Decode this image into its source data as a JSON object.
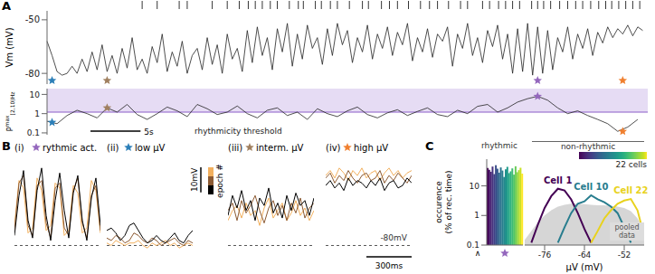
{
  "chart_data": [
    {
      "panel": "A",
      "type": "line",
      "ylabel": "Vm (mV)",
      "xlim": [
        0,
        60
      ],
      "ylim": [
        -86,
        -45
      ],
      "yticks": [
        -80,
        -50
      ],
      "tick_labels": "y",
      "color": "#222222",
      "x": [
        0,
        0.5,
        1,
        1.5,
        2,
        2.5,
        3,
        3.5,
        4,
        4.5,
        5,
        5.5,
        6,
        6.5,
        7,
        7.5,
        8,
        8.5,
        9,
        9.5,
        10,
        10.5,
        11,
        11.5,
        12,
        12.5,
        13,
        13.5,
        14,
        14.5,
        15,
        15.5,
        16,
        16.5,
        17,
        17.5,
        18,
        18.5,
        19,
        19.5,
        20,
        20.5,
        21,
        21.5,
        22,
        22.5,
        23,
        23.5,
        24,
        24.5,
        25,
        25.5,
        26,
        26.5,
        27,
        27.5,
        28,
        28.5,
        29,
        29.5,
        30,
        30.5,
        31,
        31.5,
        32,
        32.5,
        33,
        33.5,
        34,
        34.5,
        35,
        35.5,
        36,
        36.5,
        37,
        37.5,
        38,
        38.5,
        39,
        39.5,
        40,
        40.5,
        41,
        41.5,
        42,
        42.5,
        43,
        43.5,
        44,
        44.5,
        45,
        45.5,
        46,
        46.5,
        47,
        47.5,
        48,
        48.5,
        49,
        49.5,
        50,
        50.5,
        51,
        51.5,
        52,
        52.5,
        53,
        53.5,
        54,
        54.5,
        55,
        55.5,
        56,
        56.5,
        57,
        57.5,
        58,
        58.5,
        59,
        59.5
      ],
      "values": [
        -62,
        -70,
        -79,
        -81,
        -80,
        -76,
        -80,
        -72,
        -79,
        -68,
        -78,
        -64,
        -79,
        -70,
        -80,
        -66,
        -77,
        -60,
        -78,
        -72,
        -80,
        -65,
        -74,
        -58,
        -79,
        -68,
        -76,
        -62,
        -80,
        -70,
        -66,
        -78,
        -60,
        -75,
        -64,
        -80,
        -58,
        -72,
        -66,
        -79,
        -56,
        -74,
        -54,
        -70,
        -60,
        -78,
        -55,
        -68,
        -52,
        -76,
        -58,
        -72,
        -53,
        -66,
        -60,
        -75,
        -55,
        -70,
        -52,
        -64,
        -56,
        -74,
        -60,
        -68,
        -53,
        -72,
        -58,
        -66,
        -54,
        -70,
        -57,
        -64,
        -52,
        -73,
        -60,
        -68,
        -55,
        -71,
        -58,
        -62,
        -54,
        -76,
        -58,
        -66,
        -52,
        -70,
        -60,
        -74,
        -56,
        -65,
        -53,
        -72,
        -58,
        -80,
        -55,
        -79,
        -52,
        -81,
        -54,
        -80,
        -56,
        -78,
        -60,
        -68,
        -54,
        -72,
        -58,
        -66,
        -55,
        -70,
        -57,
        -63,
        -54,
        -60,
        -55,
        -58,
        -53,
        -59,
        -54,
        -56
      ],
      "spike_times": [
        9.5,
        11,
        13.2,
        14,
        16.5,
        18,
        19.2,
        20.1,
        20.8,
        21.5,
        22.3,
        23,
        24.2,
        25.1,
        25.6,
        26.8,
        27.4,
        28.3,
        29,
        30.2,
        31.5,
        32.1,
        33.4,
        34.2,
        35,
        36.1,
        37.3,
        38.2,
        39,
        40.1,
        41.3,
        42,
        43.5,
        44.2,
        45.1,
        45.8,
        46.5,
        47.2,
        48.4,
        49,
        49.6,
        50.3,
        51.2,
        52,
        52.8,
        53.5,
        54.3,
        55.1,
        55.8,
        56.4,
        57.1,
        57.8,
        58.5,
        59.2
      ],
      "scale_bar": {
        "value": 5,
        "label": "5s"
      }
    },
    {
      "type": "line",
      "ylabel": {
        "base": "P",
        "sup": "max",
        "sub": "[2,10)Hz"
      },
      "log": "y",
      "xlim": [
        0,
        60
      ],
      "ylim": [
        0.08,
        20
      ],
      "yticks": [
        0.1,
        1,
        10
      ],
      "tick_labels": "y",
      "color": "#222222",
      "x": [
        0,
        1,
        2,
        3,
        4,
        5,
        6,
        7,
        8,
        9,
        10,
        11,
        12,
        13,
        14,
        15,
        16,
        17,
        18,
        19,
        20,
        21,
        22,
        23,
        24,
        25,
        26,
        27,
        28,
        29,
        30,
        31,
        32,
        33,
        34,
        35,
        36,
        37,
        38,
        39,
        40,
        41,
        42,
        43,
        44,
        45,
        46,
        47,
        48,
        49,
        50,
        51,
        52,
        53,
        54,
        55,
        56,
        57,
        58,
        59
      ],
      "values": [
        0.4,
        0.3,
        0.8,
        1.5,
        1,
        0.6,
        2,
        1.2,
        3,
        0.9,
        0.5,
        1,
        2.2,
        1.4,
        0.7,
        3,
        1.8,
        0.9,
        1.2,
        2.5,
        1,
        0.6,
        1.5,
        2,
        0.8,
        1.2,
        0.5,
        1.8,
        1,
        0.7,
        1.4,
        2.2,
        0.9,
        0.6,
        1.1,
        1.6,
        0.8,
        1.3,
        2,
        0.9,
        0.7,
        1.5,
        1,
        2.4,
        3,
        1.2,
        2,
        4,
        6,
        8,
        5,
        2,
        1,
        1.4,
        0.8,
        0.5,
        0.3,
        0.12,
        0.2,
        0.5
      ],
      "threshold": {
        "value": 1.2,
        "label": "rhythmicity threshold",
        "color": "#8a5cc8"
      }
    },
    {
      "panel": "B",
      "type": "line",
      "tick_labels": false,
      "xlim": [
        0,
        570
      ],
      "ylim": [
        -82,
        -44
      ],
      "x": [
        0,
        30,
        60,
        90,
        120,
        150,
        180,
        210,
        240,
        270,
        300,
        330,
        360,
        390,
        420,
        450,
        480,
        510,
        540,
        570
      ],
      "reference_line": {
        "value": -80,
        "label": "-80mV"
      },
      "scale_bars": {
        "y": {
          "value": 10,
          "label": "10mV"
        },
        "x": {
          "value": 300,
          "label": "300ms"
        }
      },
      "epoch_legend": "epoch #",
      "subpanels": [
        {
          "label": "(i)",
          "title": "rythmic act.",
          "color": "#9467bd",
          "t": 49,
          "P": 8,
          "series": [
            {
              "color": "#000000",
              "values": [
                -76,
                -60,
                -50,
                -70,
                -77,
                -58,
                -49,
                -68,
                -78,
                -62,
                -51,
                -66,
                -77,
                -59,
                -52,
                -70,
                -78,
                -61,
                -53,
                -72
              ]
            },
            {
              "color": "#8c5a32",
              "values": [
                -74,
                -55,
                -52,
                -72,
                -76,
                -56,
                -54,
                -71,
                -77,
                -57,
                -55,
                -73,
                -76,
                -58,
                -53,
                -71,
                -77,
                -60,
                -56,
                -74
              ]
            },
            {
              "color": "#f2b05e",
              "values": [
                -72,
                -54,
                -57,
                -75,
                -73,
                -53,
                -58,
                -74,
                -72,
                -55,
                -57,
                -76,
                -74,
                -56,
                -59,
                -75,
                -73,
                -54,
                -58,
                -75
              ]
            }
          ]
        },
        {
          "label": "(ii)",
          "title": "low μV",
          "color": "#2c7fb8",
          "t": 0.5,
          "P": 0.35,
          "series": [
            {
              "color": "#000000",
              "values": [
                -74,
                -73,
                -75,
                -78,
                -76,
                -72,
                -71,
                -74,
                -77,
                -79,
                -78,
                -76,
                -78,
                -79,
                -77,
                -75,
                -78,
                -79,
                -76,
                -74
              ]
            },
            {
              "color": "#8c5a32",
              "values": [
                -77,
                -78,
                -76,
                -77,
                -79,
                -78,
                -75,
                -76,
                -78,
                -79,
                -77,
                -78,
                -80,
                -79,
                -78,
                -77,
                -79,
                -80,
                -78,
                -79
              ]
            },
            {
              "color": "#f2b05e",
              "values": [
                -79,
                -80,
                -78,
                -79,
                -80,
                -79,
                -79,
                -78,
                -80,
                -81,
                -79,
                -80,
                -79,
                -78,
                -80,
                -79,
                -81,
                -80,
                -79,
                -80
              ]
            }
          ]
        },
        {
          "label": "(iii)",
          "title": "interm. μV",
          "color": "#a08060",
          "t": 6,
          "P": 2,
          "series": [
            {
              "color": "#000000",
              "values": [
                -68,
                -60,
                -65,
                -58,
                -66,
                -62,
                -70,
                -61,
                -64,
                -57,
                -67,
                -63,
                -69,
                -60,
                -66,
                -59,
                -64,
                -62,
                -68,
                -61
              ]
            },
            {
              "color": "#8c5a32",
              "values": [
                -66,
                -63,
                -70,
                -62,
                -67,
                -64,
                -60,
                -66,
                -71,
                -65,
                -62,
                -68,
                -64,
                -70,
                -63,
                -67,
                -61,
                -69,
                -65,
                -63
              ]
            },
            {
              "color": "#f2b05e",
              "values": [
                -70,
                -66,
                -64,
                -69,
                -63,
                -68,
                -66,
                -72,
                -65,
                -61,
                -69,
                -66,
                -63,
                -70,
                -67,
                -62,
                -68,
                -65,
                -70,
                -66
              ]
            }
          ]
        },
        {
          "label": "(iv)",
          "title": "high μV",
          "color": "#f08030",
          "t": 57.5,
          "P": 0.12,
          "series": [
            {
              "color": "#000000",
              "values": [
                -56,
                -54,
                -57,
                -55,
                -58,
                -53,
                -56,
                -54,
                -55,
                -57,
                -54,
                -56,
                -53,
                -58,
                -55,
                -54,
                -57,
                -56,
                -53,
                -55
              ]
            },
            {
              "color": "#8c5a32",
              "values": [
                -53,
                -51,
                -55,
                -52,
                -54,
                -50,
                -53,
                -55,
                -52,
                -51,
                -54,
                -53,
                -50,
                -55,
                -52,
                -54,
                -51,
                -53,
                -55,
                -52
              ]
            },
            {
              "color": "#f2b05e",
              "values": [
                -52,
                -50,
                -53,
                -49,
                -51,
                -54,
                -50,
                -52,
                -49,
                -53,
                -51,
                -50,
                -54,
                -51,
                -49,
                -52,
                -50,
                -53,
                -51,
                -50
              ]
            }
          ]
        }
      ]
    },
    {
      "panel": "C",
      "type": "line",
      "ylabel": [
        "occurence",
        "(% of rec. time)"
      ],
      "xlabel": "μV (mV)",
      "log": "y",
      "xlim": [
        -82,
        -46
      ],
      "xticks": [
        -76,
        -64,
        -52
      ],
      "ylim": [
        0.1,
        80
      ],
      "yticks": [
        0.1,
        1,
        10
      ],
      "below_range_mark": "∧",
      "rhythmic_label": "rhythmic",
      "non_rhythmic_label": "non-rhythmic",
      "rhythmic_bars": {
        "type": "bar",
        "values": [
          40,
          35,
          30,
          45,
          25,
          50,
          38,
          28,
          42,
          33,
          20,
          36,
          44,
          27,
          31,
          39,
          24,
          46,
          29,
          34,
          41,
          26
        ],
        "colors": [
          "#440154",
          "#471365",
          "#482374",
          "#46327e",
          "#424086",
          "#3c4f8a",
          "#365c8d",
          "#31688e",
          "#2c738e",
          "#287d8e",
          "#25888e",
          "#21918c",
          "#1f9c89",
          "#22a785",
          "#2cb17e",
          "#3dbc74",
          "#52c569",
          "#6ccd5a",
          "#89d548",
          "#a8db34",
          "#c8e020",
          "#fde725"
        ]
      },
      "colorbar": {
        "label": "22 cells"
      },
      "pooled": {
        "name": "pooled data",
        "color": "#cccccc",
        "x": [
          -82,
          -80,
          -78,
          -76,
          -74,
          -72,
          -70,
          -68,
          -66,
          -64,
          -62,
          -60,
          -58,
          -56,
          -54,
          -52,
          -50,
          -48,
          -46
        ],
        "values": [
          0.15,
          0.3,
          0.6,
          1,
          1.5,
          2,
          2.3,
          2.5,
          2.5,
          2.4,
          2.3,
          2.2,
          2.2,
          2.1,
          2,
          1.8,
          1.4,
          0.8,
          0.3
        ]
      },
      "series": [
        {
          "name": "Cell 1",
          "color": "#440154",
          "x": [
            -80,
            -78,
            -76,
            -74,
            -72,
            -70,
            -68,
            -66,
            -64,
            -62
          ],
          "values": [
            0.12,
            0.5,
            1.8,
            4.5,
            8,
            7,
            3.5,
            1.2,
            0.35,
            0.12
          ]
        },
        {
          "name": "Cell 10",
          "color": "#287d8e",
          "x": [
            -72,
            -70,
            -68,
            -66,
            -64,
            -62,
            -60,
            -58,
            -56,
            -54,
            -52,
            -50
          ],
          "values": [
            0.12,
            0.4,
            1.2,
            2.5,
            3,
            4.8,
            3.5,
            2.8,
            2,
            1.2,
            0.4,
            0.12
          ]
        },
        {
          "name": "Cell 22",
          "color": "#e8d21d",
          "x": [
            -62,
            -60,
            -58,
            -56,
            -54,
            -52,
            -50,
            -48,
            -46
          ],
          "values": [
            0.12,
            0.3,
            0.8,
            1.5,
            2.5,
            3.2,
            3.6,
            1.5,
            0.2
          ]
        }
      ]
    }
  ]
}
